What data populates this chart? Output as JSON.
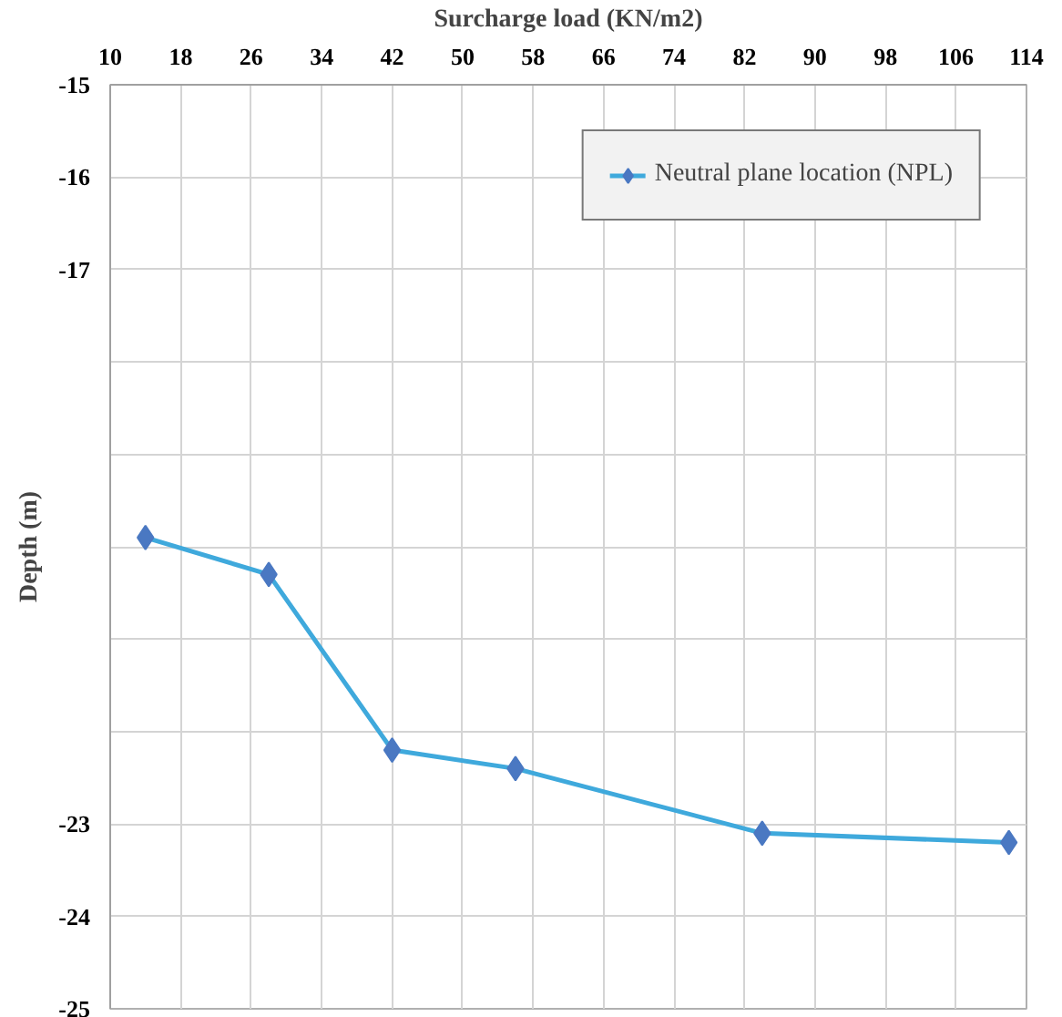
{
  "chart_data": {
    "type": "line",
    "xlabel": "Surcharge load (KN/m2)",
    "ylabel": "Depth (m)",
    "x": [
      14,
      28,
      42,
      56,
      84,
      112
    ],
    "series": [
      {
        "name": "Neutral plane location (NPL)",
        "color": "#3fa9dc",
        "values": [
          -19.9,
          -20.3,
          -22.2,
          -22.4,
          -23.1,
          -23.2
        ]
      }
    ],
    "xlim": [
      10,
      114
    ],
    "xticks": [
      10,
      18,
      26,
      34,
      42,
      50,
      58,
      66,
      74,
      82,
      90,
      98,
      106,
      114
    ],
    "ylim": [
      -25,
      -15
    ],
    "yticks": [
      -15,
      -16,
      -17,
      {
        "value": -18,
        "label": null
      },
      {
        "value": -19,
        "label": null
      },
      {
        "value": -20,
        "label": null
      },
      {
        "value": -21,
        "label": null
      },
      {
        "value": -22,
        "label": null
      },
      -23,
      -24,
      -25
    ],
    "grid": true,
    "legend": "top right",
    "marker": "diamond",
    "line_style": "solid"
  }
}
